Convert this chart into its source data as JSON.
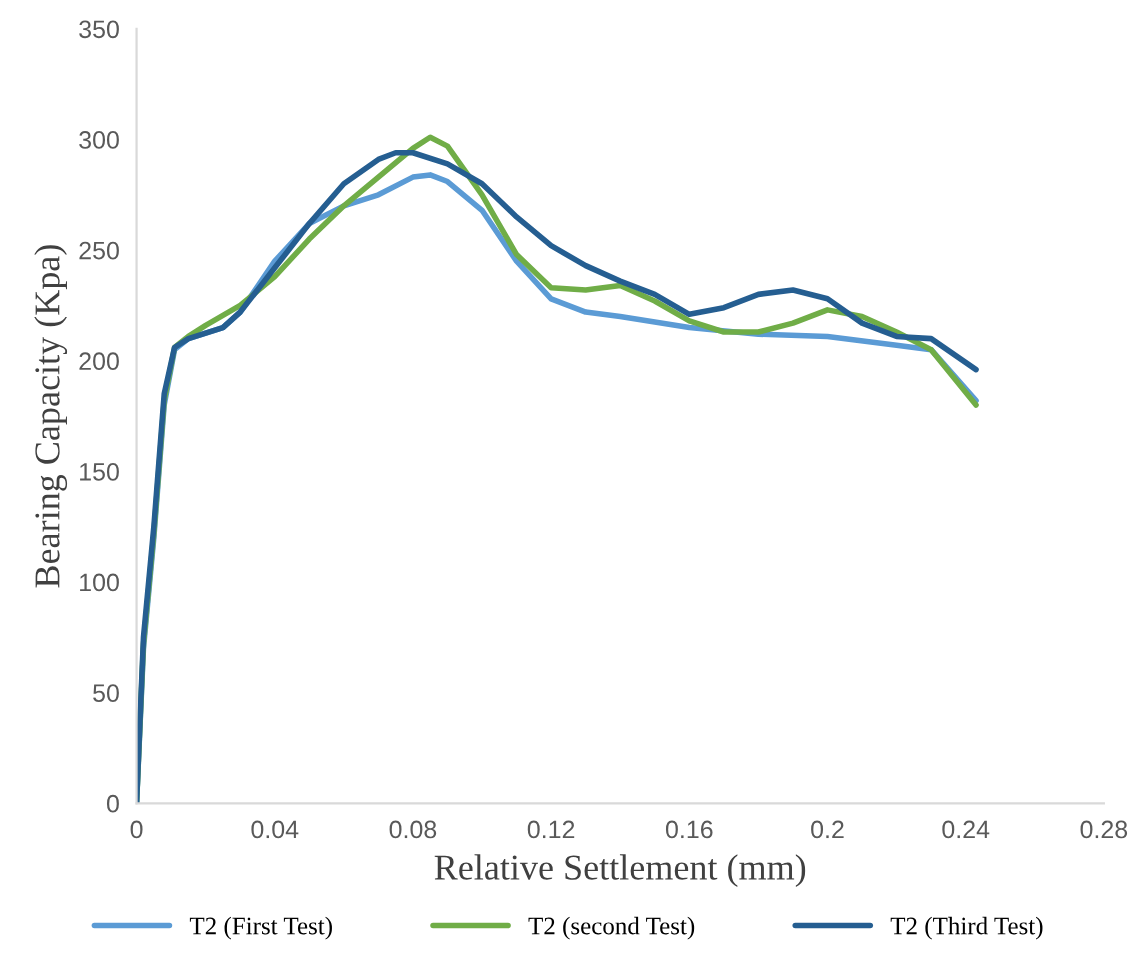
{
  "chart_data": {
    "type": "line",
    "xlabel": "Relative Settlement (mm)",
    "ylabel": "Bearing Capacity (Kpa)",
    "xlim": [
      0,
      0.28
    ],
    "xticks": [
      0,
      0.04,
      0.08,
      0.12,
      0.16,
      0.2,
      0.24,
      0.28
    ],
    "ylim": [
      0,
      350
    ],
    "yticks": [
      0,
      50,
      100,
      150,
      200,
      250,
      300,
      350
    ],
    "grid": false,
    "legend": "bottom",
    "marker": "none",
    "line_style": "solid",
    "series": [
      {
        "name": "T2 (First Test)",
        "color": "#5b9bd5",
        "x": [
          0,
          0.002,
          0.005,
          0.008,
          0.011,
          0.015,
          0.025,
          0.03,
          0.04,
          0.05,
          0.06,
          0.07,
          0.08,
          0.085,
          0.09,
          0.1,
          0.11,
          0.12,
          0.13,
          0.14,
          0.16,
          0.18,
          0.2,
          0.22,
          0.23,
          0.243
        ],
        "values": [
          0,
          70,
          120,
          180,
          205,
          210,
          215,
          222,
          245,
          262,
          270,
          275,
          283,
          284,
          281,
          268,
          245,
          228,
          222,
          220,
          215,
          212,
          211,
          207,
          205,
          182
        ]
      },
      {
        "name": "T2 (second Test)",
        "color": "#70ad47",
        "x": [
          0,
          0.002,
          0.005,
          0.008,
          0.011,
          0.015,
          0.02,
          0.03,
          0.04,
          0.05,
          0.06,
          0.07,
          0.08,
          0.085,
          0.09,
          0.1,
          0.11,
          0.12,
          0.13,
          0.14,
          0.15,
          0.16,
          0.17,
          0.18,
          0.19,
          0.2,
          0.21,
          0.22,
          0.23,
          0.243
        ],
        "values": [
          0,
          72,
          122,
          182,
          206,
          211,
          216,
          225,
          238,
          255,
          270,
          283,
          296,
          301,
          297,
          275,
          248,
          233,
          232,
          234,
          227,
          218,
          213,
          213,
          217,
          223,
          220,
          213,
          205,
          180
        ]
      },
      {
        "name": "T2 (Third Test)",
        "color": "#255e91",
        "x": [
          0,
          0.002,
          0.005,
          0.008,
          0.011,
          0.015,
          0.025,
          0.03,
          0.04,
          0.05,
          0.06,
          0.07,
          0.075,
          0.08,
          0.09,
          0.1,
          0.11,
          0.12,
          0.13,
          0.14,
          0.15,
          0.16,
          0.17,
          0.18,
          0.19,
          0.2,
          0.21,
          0.22,
          0.23,
          0.243
        ],
        "values": [
          0,
          75,
          125,
          185,
          206,
          210,
          215,
          222,
          242,
          262,
          280,
          291,
          294,
          294,
          289,
          280,
          265,
          252,
          243,
          236,
          230,
          221,
          224,
          230,
          232,
          228,
          217,
          211,
          210,
          196
        ]
      }
    ]
  }
}
